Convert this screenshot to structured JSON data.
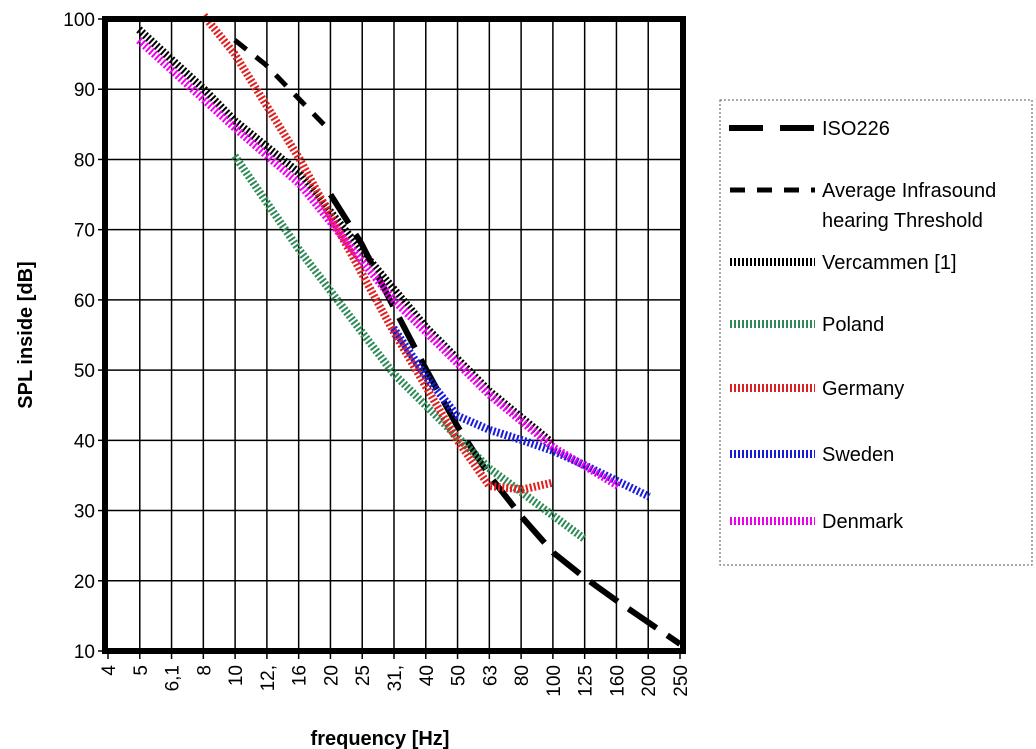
{
  "chart_data": {
    "type": "line",
    "title": "",
    "xlabel": "frequency [Hz]",
    "ylabel": "SPL inside [dB]",
    "x_scale": "log (third-octave bands)",
    "categories": [
      "4",
      "5",
      "6,1",
      "8",
      "10",
      "12,",
      "16",
      "20",
      "25",
      "31,",
      "40",
      "50",
      "63",
      "80",
      "100",
      "125",
      "160",
      "200",
      "250"
    ],
    "ylim": [
      10,
      100
    ],
    "yticks": [
      "10",
      "20",
      "30",
      "40",
      "50",
      "60",
      "70",
      "80",
      "90",
      "100"
    ],
    "grid": true,
    "legend_position": "right",
    "series": [
      {
        "name": "ISO226",
        "color": "#000000",
        "style": "long-dash",
        "points": [
          [
            20,
            75
          ],
          [
            25,
            68
          ],
          [
            31.5,
            59
          ],
          [
            40,
            50
          ],
          [
            50,
            42
          ],
          [
            63,
            35
          ],
          [
            80,
            29
          ],
          [
            100,
            24
          ],
          [
            125,
            20.5
          ],
          [
            160,
            17
          ],
          [
            200,
            14
          ],
          [
            250,
            11
          ]
        ]
      },
      {
        "name": "Average Infrasound hearing Threshold",
        "color": "#000000",
        "style": "dash",
        "points": [
          [
            10,
            97
          ],
          [
            12.5,
            93.5
          ],
          [
            16,
            88.5
          ],
          [
            20,
            84
          ]
        ]
      },
      {
        "name": "Vercammen [1]",
        "color": "#000000",
        "style": "dotted-thick",
        "points": [
          [
            5,
            98.5
          ],
          [
            8,
            90
          ],
          [
            10,
            85.5
          ],
          [
            16,
            78
          ],
          [
            25,
            67
          ],
          [
            40,
            56
          ],
          [
            63,
            47
          ],
          [
            100,
            39.5
          ]
        ]
      },
      {
        "name": "Poland",
        "color": "#2e8b57",
        "style": "dotted-thick",
        "points": [
          [
            10,
            80.5
          ],
          [
            16,
            67
          ],
          [
            31.5,
            49.5
          ],
          [
            63,
            36
          ],
          [
            125,
            26
          ]
        ]
      },
      {
        "name": "Germany",
        "color": "#e02020",
        "style": "dotted-thick",
        "points": [
          [
            8,
            100.5
          ],
          [
            10,
            95
          ],
          [
            16,
            80
          ],
          [
            31.5,
            55.5
          ],
          [
            50,
            40
          ],
          [
            63,
            33.5
          ],
          [
            80,
            33
          ],
          [
            100,
            34
          ]
        ]
      },
      {
        "name": "Sweden",
        "color": "#1a1ad9",
        "style": "dotted-thick",
        "points": [
          [
            31.5,
            56
          ],
          [
            40,
            49
          ],
          [
            50,
            43.5
          ],
          [
            63,
            41.5
          ],
          [
            80,
            40
          ],
          [
            100,
            38.5
          ],
          [
            125,
            36.5
          ],
          [
            200,
            32
          ]
        ]
      },
      {
        "name": "Denmark",
        "color": "#ee00ee",
        "style": "dotted-thick",
        "points": [
          [
            5,
            97
          ],
          [
            10,
            84.5
          ],
          [
            16,
            76.5
          ],
          [
            31.5,
            60
          ],
          [
            63,
            46.5
          ],
          [
            100,
            39
          ],
          [
            160,
            33.5
          ]
        ]
      }
    ]
  },
  "legend": {
    "entries": [
      {
        "lines": [
          "ISO226"
        ],
        "color": "#000000",
        "style": "long-dash"
      },
      {
        "lines": [
          "Average Infrasound",
          "hearing Threshold"
        ],
        "color": "#000000",
        "style": "dash"
      },
      {
        "lines": [
          "Vercammen [1]"
        ],
        "color": "#000000",
        "style": "dotted-thick"
      },
      {
        "lines": [
          "Poland"
        ],
        "color": "#2e8b57",
        "style": "dotted-thick"
      },
      {
        "lines": [
          "Germany"
        ],
        "color": "#e02020",
        "style": "dotted-thick"
      },
      {
        "lines": [
          "Sweden"
        ],
        "color": "#1a1ad9",
        "style": "dotted-thick"
      },
      {
        "lines": [
          "Denmark"
        ],
        "color": "#ee00ee",
        "style": "dotted-thick"
      }
    ]
  }
}
